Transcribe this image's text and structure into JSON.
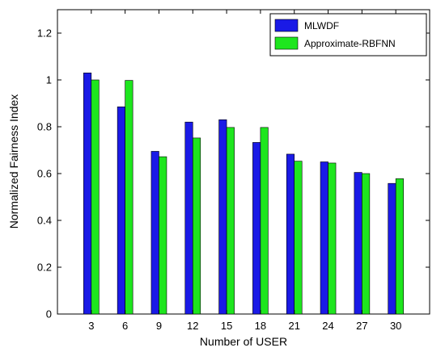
{
  "chart_data": {
    "type": "bar",
    "title": "",
    "xlabel": "Number of USER",
    "ylabel": "Normalized Fairness Index",
    "categories": [
      "3",
      "6",
      "9",
      "12",
      "15",
      "18",
      "21",
      "24",
      "27",
      "30"
    ],
    "series": [
      {
        "name": "MLWDF",
        "color": "#1a1ae6",
        "values": [
          1.03,
          0.885,
          0.695,
          0.82,
          0.83,
          0.733,
          0.683,
          0.65,
          0.605,
          0.558
        ]
      },
      {
        "name": "Approximate-RBFNN",
        "color": "#1ee61e",
        "values": [
          1.0,
          0.998,
          0.672,
          0.752,
          0.797,
          0.797,
          0.653,
          0.645,
          0.6,
          0.578
        ]
      }
    ],
    "yticks": [
      "0",
      "0.2",
      "0.4",
      "0.6",
      "0.8",
      "1",
      "1.2"
    ],
    "ylim": [
      0,
      1.3
    ],
    "grid": false,
    "legend_position": "top-right"
  }
}
